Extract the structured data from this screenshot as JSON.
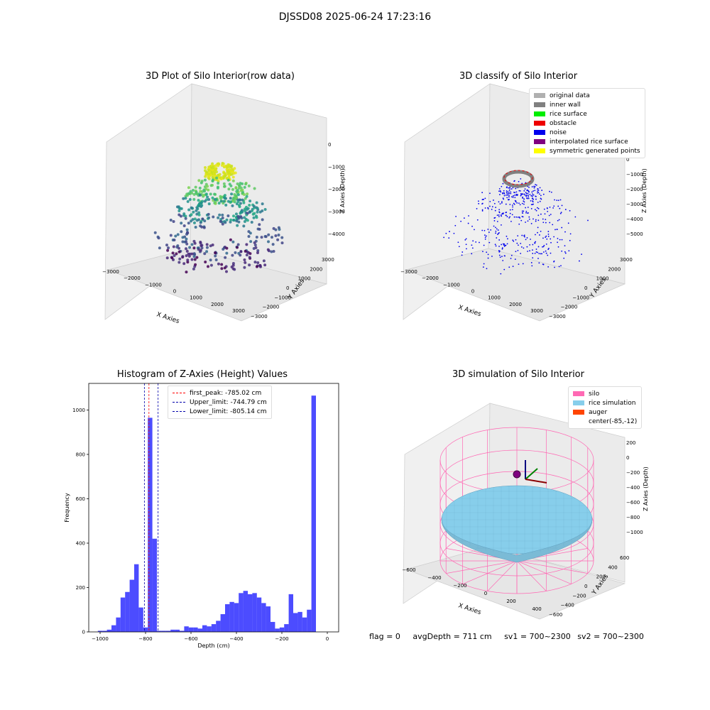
{
  "figure_title": "DJSSD08 2025-06-24 17:23:16",
  "axis_common": {
    "x_label": "X Axies",
    "y_label": "Y Axies",
    "z_label": "Z Axies (Depth)"
  },
  "panels": {
    "raw": {
      "title": "3D Plot of Silo Interior(row data)",
      "x_ticks": [
        "−3000",
        "−2000",
        "−1000",
        "0",
        "1000",
        "2000",
        "3000"
      ],
      "y_ticks": [
        "3000",
        "2000",
        "1000",
        "0",
        "−1000",
        "−2000",
        "−3000"
      ],
      "z_ticks": [
        "0",
        "−1000",
        "−2000",
        "−3000",
        "−4000"
      ]
    },
    "classify": {
      "title": "3D classify of Silo Interior",
      "x_ticks": [
        "−3000",
        "−2000",
        "−1000",
        "0",
        "1000",
        "2000",
        "3000"
      ],
      "y_ticks": [
        "3000",
        "2000",
        "1000",
        "0",
        "−1000",
        "−2000",
        "−3000"
      ],
      "z_ticks": [
        "1000",
        "0",
        "−1000",
        "−2000",
        "−3000",
        "−4000",
        "−5000"
      ],
      "legend": [
        {
          "label": "original data",
          "color": "#b0b0b0"
        },
        {
          "label": "inner wall",
          "color": "#808080"
        },
        {
          "label": "rice surface",
          "color": "#00ee00"
        },
        {
          "label": "obstacle",
          "color": "#ee0000"
        },
        {
          "label": "noise",
          "color": "#0000ee"
        },
        {
          "label": "interpolated rice surface",
          "color": "#800080"
        },
        {
          "label": "symmetric generated points",
          "color": "#ffff00"
        }
      ]
    },
    "simulation": {
      "title": "3D simulation of Silo Interior",
      "x_ticks": [
        "−600",
        "−400",
        "−200",
        "0",
        "200",
        "400"
      ],
      "y_ticks": [
        "600",
        "400",
        "200",
        "0",
        "−200",
        "−400",
        "−600"
      ],
      "z_ticks": [
        "200",
        "0",
        "−200",
        "−400",
        "−600",
        "−800",
        "−1000"
      ],
      "legend": [
        {
          "label": "silo",
          "color": "#ff69b4"
        },
        {
          "label": "rice simulation",
          "color": "#87ceeb"
        },
        {
          "label": "auger",
          "color": "#ff4500"
        },
        {
          "label": "center(-85,-12)",
          "color": "#ffffff"
        }
      ]
    }
  },
  "chart_data": [
    {
      "type": "bar",
      "title": "Histogram of Z-Axies (Height) Values",
      "xlabel": "Depth (cm)",
      "ylabel": "Frequency",
      "xlim": [
        -1050,
        50
      ],
      "ylim": [
        0,
        1120
      ],
      "x_ticks": [
        -1000,
        -800,
        -600,
        -400,
        -200,
        0
      ],
      "y_ticks": [
        0,
        200,
        400,
        600,
        800,
        1000
      ],
      "bar_color": "#0000ff",
      "bin_edges": [
        -1010,
        -990,
        -970,
        -950,
        -930,
        -910,
        -890,
        -870,
        -850,
        -830,
        -810,
        -790,
        -770,
        -750,
        -730,
        -710,
        -690,
        -670,
        -650,
        -630,
        -610,
        -590,
        -570,
        -550,
        -530,
        -510,
        -490,
        -470,
        -450,
        -430,
        -410,
        -390,
        -370,
        -350,
        -330,
        -310,
        -290,
        -270,
        -250,
        -230,
        -210,
        -190,
        -170,
        -150,
        -130,
        -110,
        -90,
        -70,
        -50,
        -30,
        -10,
        0
      ],
      "values": [
        5,
        5,
        10,
        30,
        65,
        155,
        180,
        235,
        305,
        110,
        20,
        965,
        420,
        5,
        5,
        5,
        10,
        10,
        5,
        25,
        20,
        20,
        15,
        30,
        25,
        35,
        50,
        80,
        125,
        135,
        130,
        175,
        185,
        170,
        175,
        155,
        130,
        115,
        45,
        15,
        20,
        35,
        170,
        85,
        90,
        65,
        100,
        1065,
        0,
        0,
        0
      ],
      "vlines": [
        {
          "label": "first_peak: -785.02 cm",
          "x": -785.02,
          "color": "#ff0000"
        },
        {
          "label": "Upper_limit: -744.79 cm",
          "x": -744.79,
          "color": "#0000aa"
        },
        {
          "label": "Lower_limit: -805.14 cm",
          "x": -805.14,
          "color": "#0000aa"
        }
      ]
    }
  ],
  "footer": {
    "flag": "flag = 0",
    "avg_depth": "avgDepth = 711 cm",
    "sv1": "sv1 = 700~2300",
    "sv2": "sv2 = 700~2300"
  }
}
